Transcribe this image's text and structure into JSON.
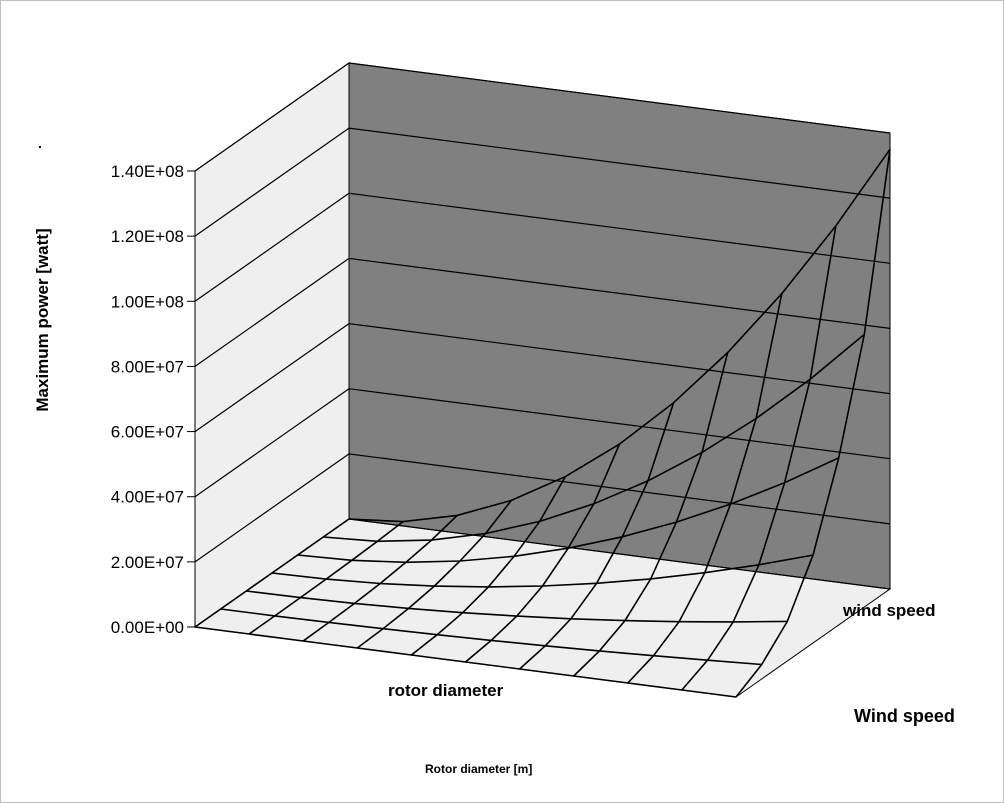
{
  "chart_data": {
    "type": "surface",
    "title": "",
    "stray_mark": ".",
    "ylabel": "Maximum power [watt]",
    "xlabel_inner": "rotor diameter",
    "xlabel_outer": "Rotor diameter  [m]",
    "zlabel_inner": "wind speed",
    "zlabel_outer": "Wind speed",
    "ylim": [
      0,
      140000000
    ],
    "yticks": [
      "0.00E+00",
      "2.00E+07",
      "4.00E+07",
      "6.00E+07",
      "8.00E+07",
      "1.00E+08",
      "1.20E+08",
      "1.40E+08"
    ],
    "ytick_values": [
      0,
      20000000,
      40000000,
      60000000,
      80000000,
      100000000,
      120000000,
      140000000
    ],
    "x_categories": 11,
    "z_categories": 7,
    "z_fraction": [
      0.0,
      0.033,
      0.09,
      0.2,
      0.38,
      0.62,
      1.0
    ],
    "values_max": 135000000,
    "grid": true,
    "legend": "none",
    "colors": {
      "back_wall": "#808080",
      "side_wall": "#efefef",
      "floor": "#efefef",
      "lines": "#000000"
    }
  }
}
